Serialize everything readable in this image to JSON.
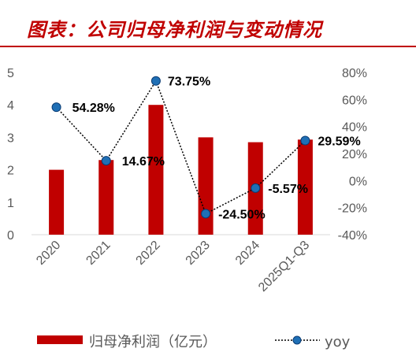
{
  "header": {
    "title": "图表：公司归母净利润与变动情况"
  },
  "colors": {
    "bar": "#c00000",
    "line": "#000000",
    "marker": "#1f6fb5",
    "marker_edge": "#0b3d75",
    "text": "#595959"
  },
  "chart_data": {
    "type": "bar",
    "categories": [
      "2020",
      "2021",
      "2022",
      "2023",
      "2024",
      "2025Q1-Q3"
    ],
    "series": [
      {
        "name": "归母净利润（亿元）",
        "type": "bar",
        "axis": "left",
        "values": [
          2.0,
          2.3,
          4.0,
          3.0,
          2.85,
          2.93
        ]
      },
      {
        "name": "yoy",
        "type": "line",
        "axis": "right",
        "values": [
          54.28,
          14.67,
          73.75,
          -24.5,
          -5.57,
          29.59
        ],
        "labels": [
          "54.28%",
          "14.67%",
          "73.75%",
          "-24.50%",
          "-5.57%",
          "29.59%"
        ]
      }
    ],
    "left_axis": {
      "ylim": [
        0,
        5
      ],
      "ticks": [
        "0",
        "1",
        "2",
        "3",
        "4",
        "5"
      ]
    },
    "right_axis": {
      "ylim": [
        -40,
        80
      ],
      "ticks": [
        "-40%",
        "-20%",
        "0%",
        "20%",
        "40%",
        "60%",
        "80%"
      ]
    },
    "legend_position": "bottom",
    "grid": false
  }
}
